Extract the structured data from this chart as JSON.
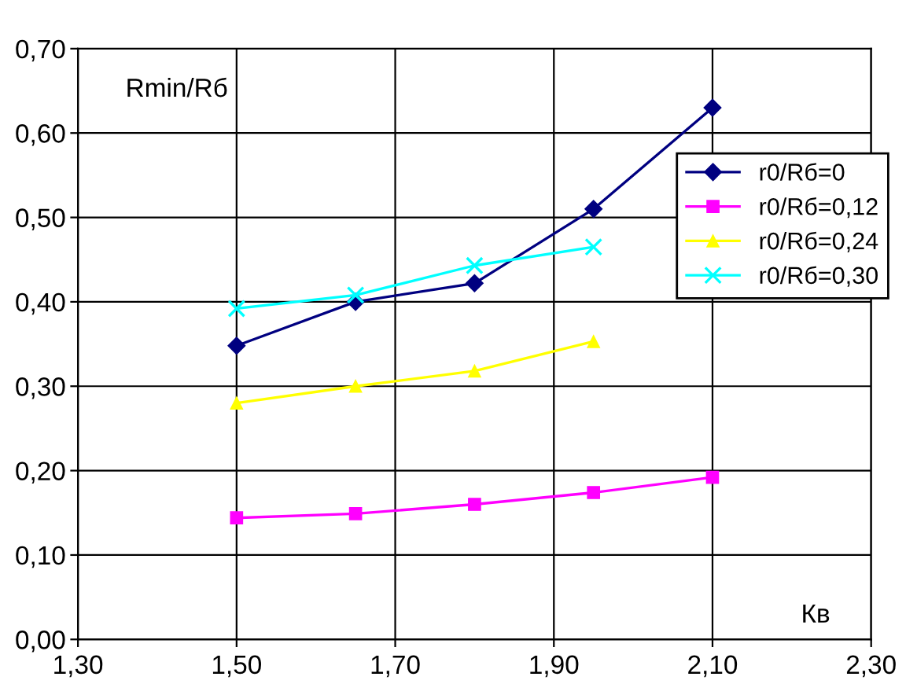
{
  "chart_data": {
    "type": "line",
    "xlabel": "Кв",
    "ylabel": "Rmin/Rб",
    "x": [
      1.5,
      1.65,
      1.8,
      1.95,
      2.1
    ],
    "series": [
      {
        "name": "r0/Rб=0",
        "color": "#000080",
        "marker": "diamond",
        "values": [
          0.348,
          0.4,
          0.422,
          0.51,
          0.63
        ]
      },
      {
        "name": "r0/Rб=0,12",
        "color": "#ff00ff",
        "marker": "square",
        "values": [
          0.144,
          0.149,
          0.16,
          0.174,
          0.192
        ]
      },
      {
        "name": "r0/Rб=0,24",
        "color": "#ffff00",
        "marker": "triangle",
        "values": [
          0.28,
          0.3,
          0.318,
          0.353,
          null
        ]
      },
      {
        "name": "r0/Rб=0,30",
        "color": "#00ffff",
        "marker": "cross",
        "values": [
          0.392,
          0.408,
          0.443,
          0.465,
          null
        ]
      }
    ],
    "xlim": [
      1.3,
      2.3
    ],
    "ylim": [
      0,
      0.7
    ],
    "xticks": [
      {
        "value": 1.3,
        "label": "1,30"
      },
      {
        "value": 1.5,
        "label": "1,50"
      },
      {
        "value": 1.7,
        "label": "1,70"
      },
      {
        "value": 1.9,
        "label": "1,90"
      },
      {
        "value": 2.1,
        "label": "2,10"
      },
      {
        "value": 2.3,
        "label": "2,30"
      }
    ],
    "yticks": [
      {
        "value": 0,
        "label": "0,00"
      },
      {
        "value": 0.1,
        "label": "0,10"
      },
      {
        "value": 0.2,
        "label": "0,20"
      },
      {
        "value": 0.3,
        "label": "0,30"
      },
      {
        "value": 0.4,
        "label": "0,40"
      },
      {
        "value": 0.5,
        "label": "0,50"
      },
      {
        "value": 0.6,
        "label": "0,60"
      },
      {
        "value": 0.7,
        "label": "0,70"
      }
    ],
    "grid": true,
    "legend": "right",
    "line_style": "solid"
  }
}
